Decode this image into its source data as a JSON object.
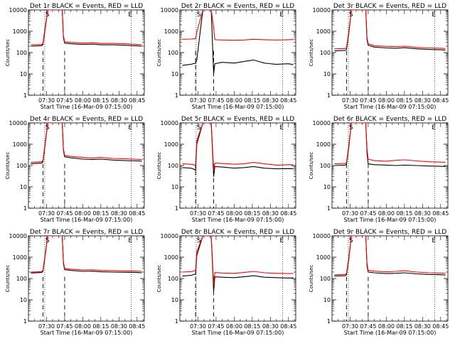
{
  "chart_data": [
    {
      "type": "line",
      "title": "Det 1r BLACK = Events, RED = LLD",
      "xlabel": "Start Time (16-Mar-09 07:15:00)",
      "ylabel": "Counts/sec",
      "yscale": "log",
      "ylim": [
        1,
        10000
      ],
      "x_ticks": [
        "07:30",
        "07:45",
        "08:00",
        "08:15",
        "08:30",
        "08:45"
      ],
      "y_ticks": [
        "1",
        "10",
        "100",
        "1000",
        "10000"
      ],
      "markers": [
        "S",
        "E"
      ],
      "series": [
        {
          "color": "#000000",
          "x": [
            "07:17",
            "07:26",
            "07:27",
            "07:29",
            "07:31",
            "07:37",
            "07:43",
            "07:44",
            "07:45",
            "07:50",
            "08:00",
            "08:08",
            "08:15",
            "08:25",
            "08:35",
            "08:45",
            "08:49"
          ],
          "values": [
            200,
            210,
            240,
            1500,
            10000,
            10000,
            10000,
            500,
            280,
            260,
            240,
            250,
            230,
            230,
            220,
            205,
            200
          ]
        },
        {
          "color": "#ff0000",
          "x": [
            "07:17",
            "07:26",
            "07:27",
            "07:29",
            "07:31",
            "07:37",
            "07:43",
            "07:44",
            "07:45",
            "07:50",
            "08:00",
            "08:08",
            "08:15",
            "08:25",
            "08:35",
            "08:45",
            "08:49"
          ],
          "values": [
            230,
            240,
            280,
            1800,
            10000,
            10000,
            10000,
            600,
            320,
            300,
            280,
            290,
            270,
            270,
            260,
            240,
            235
          ]
        }
      ]
    },
    {
      "type": "line",
      "title": "Det 2r BLACK = Events, RED = LLD",
      "xlabel": "Start Time (16-Mar-09 07:15:00)",
      "ylabel": "Counts/sec",
      "yscale": "log",
      "ylim": [
        1,
        10000
      ],
      "x_ticks": [
        "07:30",
        "07:45",
        "08:00",
        "08:15",
        "08:30",
        "08:45"
      ],
      "y_ticks": [
        "1",
        "10",
        "100",
        "1000",
        "10000"
      ],
      "markers": [
        "S",
        "E"
      ],
      "series": [
        {
          "color": "#000000",
          "x": [
            "07:17",
            "07:24",
            "07:26",
            "07:28",
            "07:29",
            "07:34",
            "07:41",
            "07:43",
            "07:44",
            "07:50",
            "08:00",
            "08:08",
            "08:16",
            "08:25",
            "08:35",
            "08:45",
            "08:49"
          ],
          "values": [
            25,
            28,
            30,
            32,
            45,
            10000,
            10000,
            10,
            30,
            35,
            32,
            38,
            45,
            32,
            28,
            30,
            27
          ]
        },
        {
          "color": "#ff0000",
          "x": [
            "07:17",
            "07:24",
            "07:26",
            "07:28",
            "07:29",
            "07:34",
            "07:41",
            "07:43",
            "07:44",
            "07:50",
            "08:00",
            "08:08",
            "08:16",
            "08:25",
            "08:35",
            "08:45",
            "08:49"
          ],
          "values": [
            420,
            430,
            440,
            450,
            900,
            10000,
            10000,
            1500,
            400,
            390,
            380,
            390,
            420,
            400,
            390,
            400,
            410
          ]
        }
      ]
    },
    {
      "type": "line",
      "title": "Det 3r BLACK = Events, RED = LLD",
      "xlabel": "Start Time (16-Mar-09 07:15:00)",
      "ylabel": "Counts/sec",
      "yscale": "log",
      "ylim": [
        1,
        10000
      ],
      "x_ticks": [
        "07:30",
        "07:45",
        "08:00",
        "08:15",
        "08:30",
        "08:45"
      ],
      "y_ticks": [
        "1",
        "10",
        "100",
        "1000",
        "10000"
      ],
      "markers": [
        "S",
        "E"
      ],
      "series": [
        {
          "color": "#000000",
          "x": [
            "07:17",
            "07:26",
            "07:27",
            "07:29",
            "07:31",
            "07:37",
            "07:43",
            "07:44",
            "07:45",
            "07:50",
            "08:00",
            "08:08",
            "08:15",
            "08:25",
            "08:35",
            "08:45",
            "08:49"
          ],
          "values": [
            120,
            125,
            140,
            900,
            10000,
            10000,
            10000,
            400,
            220,
            180,
            165,
            160,
            170,
            150,
            140,
            135,
            130
          ]
        },
        {
          "color": "#ff0000",
          "x": [
            "07:17",
            "07:26",
            "07:27",
            "07:29",
            "07:31",
            "07:37",
            "07:43",
            "07:44",
            "07:45",
            "07:50",
            "08:00",
            "08:08",
            "08:15",
            "08:25",
            "08:35",
            "08:45",
            "08:49"
          ],
          "values": [
            150,
            155,
            170,
            1100,
            10000,
            10000,
            10000,
            500,
            260,
            210,
            195,
            190,
            200,
            175,
            165,
            160,
            155
          ]
        }
      ]
    },
    {
      "type": "line",
      "title": "Det 4r BLACK = Events, RED = LLD",
      "xlabel": "Start Time (16-Mar-09 07:15:00)",
      "ylabel": "Counts/sec",
      "yscale": "log",
      "ylim": [
        1,
        10000
      ],
      "x_ticks": [
        "07:30",
        "07:45",
        "08:00",
        "08:15",
        "08:30",
        "08:45"
      ],
      "y_ticks": [
        "1",
        "10",
        "100",
        "1000",
        "10000"
      ],
      "markers": [
        "S",
        "E"
      ],
      "series": [
        {
          "color": "#000000",
          "x": [
            "07:17",
            "07:26",
            "07:27",
            "07:29",
            "07:31",
            "07:37",
            "07:43",
            "07:44",
            "07:45",
            "07:50",
            "08:00",
            "08:08",
            "08:15",
            "08:25",
            "08:35",
            "08:45",
            "08:49"
          ],
          "values": [
            120,
            130,
            150,
            1200,
            10000,
            10000,
            10000,
            500,
            260,
            230,
            200,
            190,
            200,
            180,
            170,
            165,
            160
          ]
        },
        {
          "color": "#ff0000",
          "x": [
            "07:17",
            "07:26",
            "07:27",
            "07:29",
            "07:31",
            "07:37",
            "07:43",
            "07:44",
            "07:45",
            "07:50",
            "08:00",
            "08:08",
            "08:15",
            "08:25",
            "08:35",
            "08:45",
            "08:49"
          ],
          "values": [
            140,
            150,
            175,
            1400,
            10000,
            10000,
            10000,
            600,
            300,
            270,
            240,
            225,
            240,
            215,
            205,
            195,
            190
          ]
        }
      ]
    },
    {
      "type": "line",
      "title": "Det 5r BLACK = Events, RED = LLD",
      "xlabel": "Start Time (16-Mar-09 07:15:00)",
      "ylabel": "Counts/sec",
      "yscale": "log",
      "ylim": [
        1,
        10000
      ],
      "x_ticks": [
        "07:30",
        "07:45",
        "08:00",
        "08:15",
        "08:30",
        "08:45"
      ],
      "y_ticks": [
        "1",
        "10",
        "100",
        "1000",
        "10000"
      ],
      "markers": [
        "S",
        "E"
      ],
      "series": [
        {
          "color": "#000000",
          "x": [
            "07:17",
            "07:24",
            "07:26",
            "07:28",
            "07:29",
            "07:34",
            "07:41",
            "07:43",
            "07:44",
            "07:50",
            "08:00",
            "08:08",
            "08:16",
            "08:25",
            "08:35",
            "08:45",
            "08:49"
          ],
          "values": [
            80,
            75,
            70,
            60,
            1000,
            10000,
            10000,
            30,
            90,
            85,
            75,
            80,
            90,
            75,
            70,
            72,
            70
          ]
        },
        {
          "color": "#ff0000",
          "x": [
            "07:17",
            "07:24",
            "07:26",
            "07:28",
            "07:29",
            "07:34",
            "07:41",
            "07:43",
            "07:44",
            "07:50",
            "08:00",
            "08:08",
            "08:16",
            "08:25",
            "08:35",
            "08:45",
            "08:49"
          ],
          "values": [
            120,
            115,
            110,
            100,
            1500,
            10000,
            10000,
            60,
            130,
            125,
            115,
            120,
            140,
            120,
            105,
            110,
            108
          ]
        }
      ]
    },
    {
      "type": "line",
      "title": "Det 6r BLACK = Events, RED = LLD",
      "xlabel": "Start Time (16-Mar-09 07:15:00)",
      "ylabel": "Counts/sec",
      "yscale": "log",
      "ylim": [
        1,
        10000
      ],
      "x_ticks": [
        "07:30",
        "07:45",
        "08:00",
        "08:15",
        "08:30",
        "08:45"
      ],
      "y_ticks": [
        "1",
        "10",
        "100",
        "1000",
        "10000"
      ],
      "markers": [
        "S",
        "E"
      ],
      "series": [
        {
          "color": "#000000",
          "x": [
            "07:17",
            "07:26",
            "07:27",
            "07:29",
            "07:31",
            "07:37",
            "07:43",
            "07:44",
            "07:45",
            "07:50",
            "08:00",
            "08:08",
            "08:15",
            "08:25",
            "08:35",
            "08:45",
            "08:49"
          ],
          "values": [
            100,
            105,
            120,
            800,
            10000,
            10000,
            10000,
            400,
            120,
            110,
            105,
            100,
            105,
            100,
            95,
            92,
            90
          ]
        },
        {
          "color": "#ff0000",
          "x": [
            "07:17",
            "07:26",
            "07:27",
            "07:29",
            "07:31",
            "07:37",
            "07:43",
            "07:44",
            "07:45",
            "07:50",
            "08:00",
            "08:08",
            "08:15",
            "08:25",
            "08:35",
            "08:45",
            "08:49"
          ],
          "values": [
            120,
            125,
            140,
            1000,
            10000,
            10000,
            10000,
            600,
            200,
            170,
            160,
            175,
            185,
            165,
            150,
            145,
            140
          ]
        }
      ]
    },
    {
      "type": "line",
      "title": "Det 7r BLACK = Events, RED = LLD",
      "xlabel": "Start Time (16-Mar-09 07:15:00)",
      "ylabel": "Counts/sec",
      "yscale": "log",
      "ylim": [
        1,
        10000
      ],
      "x_ticks": [
        "07:30",
        "07:45",
        "08:00",
        "08:15",
        "08:30",
        "08:45"
      ],
      "y_ticks": [
        "1",
        "10",
        "100",
        "1000",
        "10000"
      ],
      "markers": [
        "S",
        "E"
      ],
      "series": [
        {
          "color": "#000000",
          "x": [
            "07:17",
            "07:26",
            "07:27",
            "07:29",
            "07:31",
            "07:37",
            "07:43",
            "07:44",
            "07:45",
            "07:50",
            "08:00",
            "08:08",
            "08:15",
            "08:25",
            "08:35",
            "08:45",
            "08:49"
          ],
          "values": [
            180,
            190,
            220,
            1400,
            10000,
            10000,
            10000,
            500,
            260,
            240,
            215,
            220,
            205,
            200,
            195,
            190,
            185
          ]
        },
        {
          "color": "#ff0000",
          "x": [
            "07:17",
            "07:26",
            "07:27",
            "07:29",
            "07:31",
            "07:37",
            "07:43",
            "07:44",
            "07:45",
            "07:50",
            "08:00",
            "08:08",
            "08:15",
            "08:25",
            "08:35",
            "08:45",
            "08:49"
          ],
          "values": [
            200,
            210,
            245,
            1600,
            10000,
            10000,
            10000,
            600,
            300,
            275,
            250,
            255,
            240,
            235,
            225,
            220,
            215
          ]
        }
      ]
    },
    {
      "type": "line",
      "title": "Det 8r BLACK = Events, RED = LLD",
      "xlabel": "Start Time (16-Mar-09 07:15:00)",
      "ylabel": "Counts/sec",
      "yscale": "log",
      "ylim": [
        1,
        10000
      ],
      "x_ticks": [
        "07:30",
        "07:45",
        "08:00",
        "08:15",
        "08:30",
        "08:45"
      ],
      "y_ticks": [
        "1",
        "10",
        "100",
        "1000",
        "10000"
      ],
      "markers": [
        "S",
        "E"
      ],
      "series": [
        {
          "color": "#000000",
          "x": [
            "07:17",
            "07:24",
            "07:26",
            "07:28",
            "07:29",
            "07:34",
            "07:41",
            "07:43",
            "07:44",
            "07:50",
            "08:00",
            "08:08",
            "08:16",
            "08:25",
            "08:35",
            "08:45",
            "08:49"
          ],
          "values": [
            130,
            140,
            150,
            160,
            1200,
            10000,
            10000,
            25,
            120,
            115,
            110,
            120,
            135,
            115,
            110,
            105,
            108
          ]
        },
        {
          "color": "#ff0000",
          "x": [
            "07:17",
            "07:24",
            "07:26",
            "07:28",
            "07:29",
            "07:34",
            "07:41",
            "07:43",
            "07:44",
            "07:50",
            "08:00",
            "08:08",
            "08:16",
            "08:25",
            "08:35",
            "08:45",
            "08:49"
          ],
          "values": [
            200,
            210,
            220,
            240,
            1800,
            10000,
            10000,
            50,
            190,
            180,
            175,
            190,
            215,
            185,
            175,
            170,
            172
          ]
        }
      ]
    },
    {
      "type": "line",
      "title": "Det 9r BLACK = Events, RED = LLD",
      "xlabel": "Start Time (16-Mar-09 07:15:00)",
      "ylabel": "Counts/sec",
      "yscale": "log",
      "ylim": [
        1,
        10000
      ],
      "x_ticks": [
        "07:30",
        "07:45",
        "08:00",
        "08:15",
        "08:30",
        "08:45"
      ],
      "y_ticks": [
        "1",
        "10",
        "100",
        "1000",
        "10000"
      ],
      "markers": [
        "S",
        "E"
      ],
      "series": [
        {
          "color": "#000000",
          "x": [
            "07:17",
            "07:26",
            "07:27",
            "07:29",
            "07:31",
            "07:37",
            "07:43",
            "07:44",
            "07:45",
            "07:50",
            "08:00",
            "08:08",
            "08:15",
            "08:25",
            "08:35",
            "08:45",
            "08:49"
          ],
          "values": [
            130,
            135,
            150,
            900,
            10000,
            10000,
            10000,
            400,
            200,
            185,
            170,
            175,
            185,
            165,
            155,
            150,
            145
          ]
        },
        {
          "color": "#ff0000",
          "x": [
            "07:17",
            "07:26",
            "07:27",
            "07:29",
            "07:31",
            "07:37",
            "07:43",
            "07:44",
            "07:45",
            "07:50",
            "08:00",
            "08:08",
            "08:15",
            "08:25",
            "08:35",
            "08:45",
            "08:49"
          ],
          "values": [
            150,
            155,
            175,
            1100,
            10000,
            10000,
            10000,
            500,
            240,
            220,
            205,
            215,
            230,
            200,
            185,
            180,
            175
          ]
        }
      ]
    }
  ]
}
